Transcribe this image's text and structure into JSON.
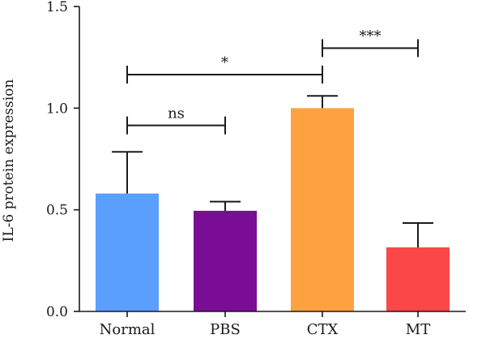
{
  "chart_data": {
    "type": "bar",
    "title": "",
    "xlabel": "",
    "ylabel": "IL-6 protein expression",
    "ylim": [
      0,
      1.5
    ],
    "yticks": [
      "0.0",
      "0.5",
      "1.0",
      "1.5"
    ],
    "ytick_values": [
      0,
      0.5,
      1.0,
      1.5
    ],
    "categories": [
      "Normal",
      "PBS",
      "CTX",
      "MT"
    ],
    "values": [
      0.58,
      0.495,
      1.0,
      0.315
    ],
    "errors": [
      0.205,
      0.045,
      0.06,
      0.12
    ],
    "colors": [
      "#5a9ffc",
      "#7a0d95",
      "#fea23f",
      "#fb4747"
    ],
    "significance": [
      {
        "from": 0,
        "to": 1,
        "label": "ns",
        "y": 0.915
      },
      {
        "from": 0,
        "to": 2,
        "label": "*",
        "y": 1.165
      },
      {
        "from": 2,
        "to": 3,
        "label": "***",
        "y": 1.295
      }
    ],
    "grid": false,
    "legend": "none"
  }
}
